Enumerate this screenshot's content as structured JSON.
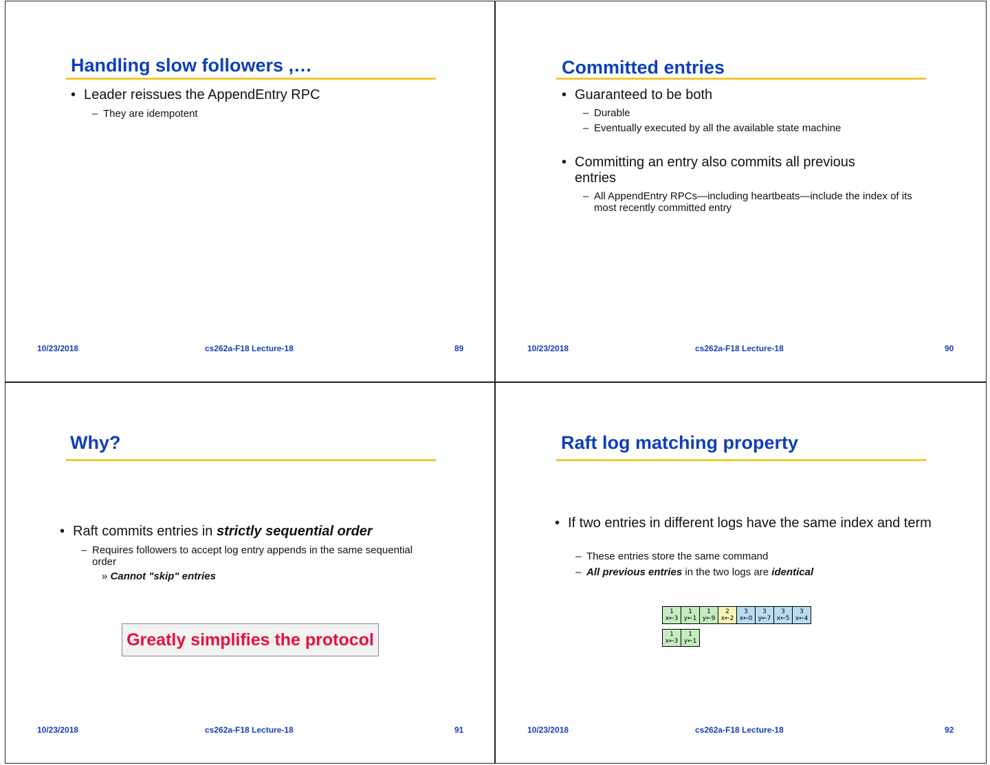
{
  "footer": {
    "date": "10/23/2018",
    "course": "cs262a-F18 Lecture-18"
  },
  "slides": [
    {
      "page": "89",
      "title": "Handling slow followers ,…",
      "bullets": [
        {
          "text": "Leader reissues the AppendEntry RPC",
          "sub": [
            "They are idempotent"
          ]
        }
      ]
    },
    {
      "page": "90",
      "title": "Committed entries",
      "bullets": [
        {
          "text": "Guaranteed to be both",
          "sub": [
            "Durable",
            "Eventually executed by all the available state machine"
          ]
        },
        {
          "text": "Committing an entry also commits all previous entries",
          "sub": [
            "All AppendEntry RPCs—including heartbeats—include the index of its most recently committed entry"
          ]
        }
      ]
    },
    {
      "page": "91",
      "title": "Why?",
      "bullet_pre": "Raft commits entries in ",
      "bullet_em": "strictly sequential order",
      "sub": "Requires followers to accept log entry appends in the same sequential order",
      "subsub": "Cannot \"skip\" entries",
      "callout": "Greatly simplifies the protocol"
    },
    {
      "page": "92",
      "title": "Raft log matching property",
      "bullet": "If two entries in different logs have the same index and term",
      "sub1": "These entries store the same command",
      "sub2_em1": "All previous entries",
      "sub2_mid": " in the two logs are ",
      "sub2_em2": "identical",
      "logs": [
        [
          {
            "term": "1",
            "cmd": "x←3"
          },
          {
            "term": "1",
            "cmd": "y←1"
          },
          {
            "term": "1",
            "cmd": "y←9"
          },
          {
            "term": "2",
            "cmd": "x←2"
          },
          {
            "term": "3",
            "cmd": "x←0"
          },
          {
            "term": "3",
            "cmd": "y←7"
          },
          {
            "term": "3",
            "cmd": "x←5"
          },
          {
            "term": "3",
            "cmd": "x←4"
          }
        ],
        [
          {
            "term": "1",
            "cmd": "x←3"
          },
          {
            "term": "1",
            "cmd": "y←1"
          }
        ]
      ],
      "term_colors": {
        "1": "#c4ecc0",
        "2": "#fbf3b4",
        "3": "#b8dcf2"
      }
    }
  ]
}
